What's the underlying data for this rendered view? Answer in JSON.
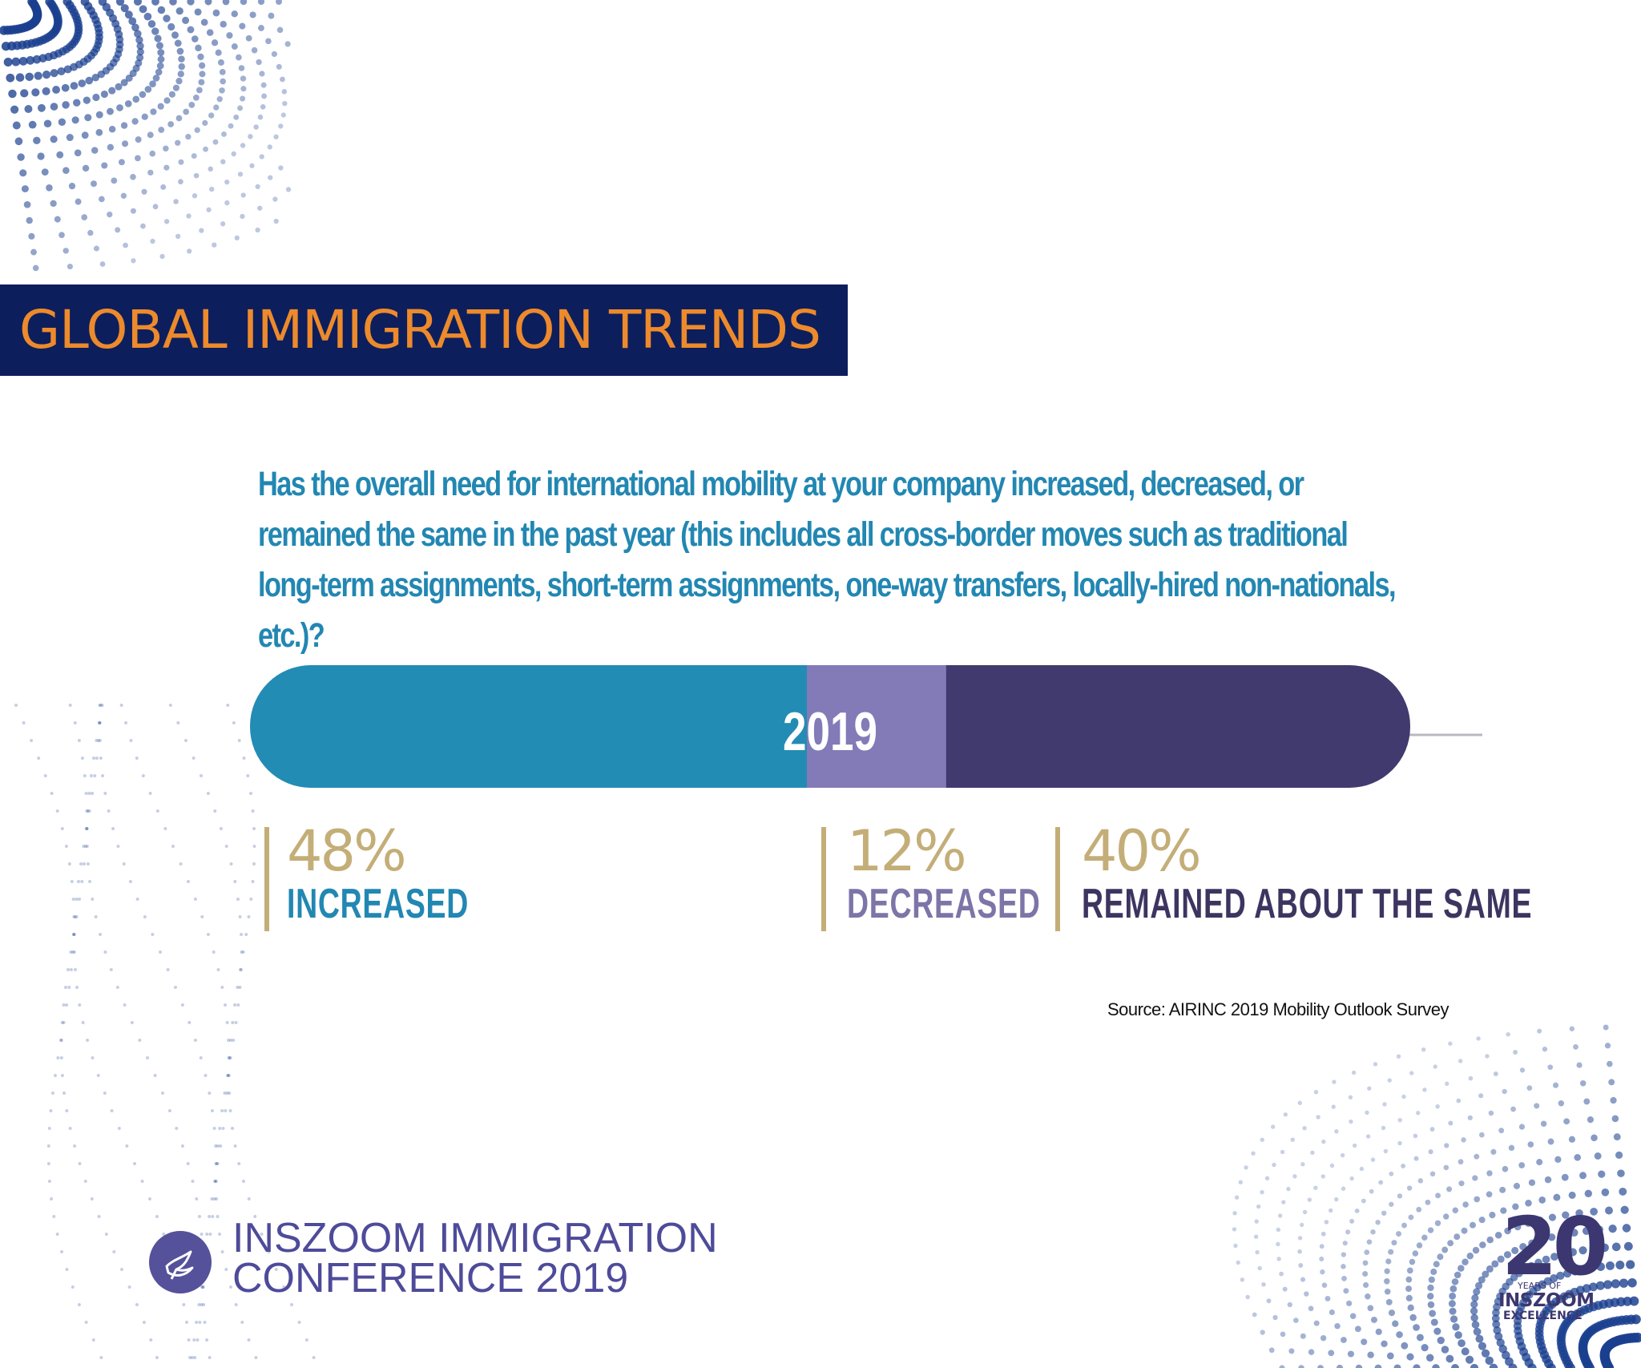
{
  "slide": {
    "title": "GLOBAL IMMIGRATION TRENDS",
    "question": "Has the overall need for international mobility at your company increased, decreased, or remained the same in the past year (this includes all cross-border moves such as traditional long-term assignments, short-term assignments, one-way transfers, locally-hired non-nationals, etc.)?",
    "source": "Source: AIRINC 2019 Mobility Outlook Survey"
  },
  "chart_data": {
    "type": "bar",
    "orientation": "horizontal-stacked",
    "bar_label": "2019",
    "series": [
      {
        "name": "INCREASED",
        "value": 48,
        "value_label": "48%",
        "color": "#238cb4"
      },
      {
        "name": "DECREASED",
        "value": 12,
        "value_label": "12%",
        "color": "#837bb8"
      },
      {
        "name": "REMAINED ABOUT THE SAME",
        "value": 40,
        "value_label": "40%",
        "color": "#413a6e"
      }
    ],
    "total": 100,
    "title": "",
    "xlabel": "",
    "ylabel": ""
  },
  "footer": {
    "line1": "INSZOOM IMMIGRATION",
    "line2": "CONFERENCE 2019",
    "logo_icon": "bird-icon"
  },
  "badge": {
    "number": "20",
    "years": "YEARS OF",
    "brand": "INSZOOM",
    "tagline": "EXCELLENCE"
  },
  "colors": {
    "title_band": "#0d1e5c",
    "title_text": "#ec8a2c",
    "question_text": "#2287b2",
    "divider": "#c4ae78",
    "dots": "#1a3f8f"
  }
}
